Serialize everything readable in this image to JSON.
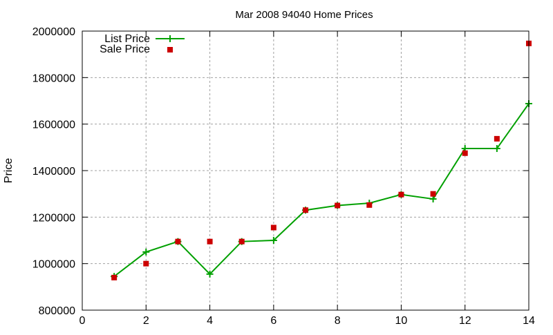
{
  "chart_data": {
    "type": "line",
    "title": "Mar 2008 94040 Home Prices",
    "xlabel": "",
    "ylabel": "Price",
    "xlim": [
      0,
      14
    ],
    "ylim": [
      800000,
      2000000
    ],
    "xticks": [
      0,
      2,
      4,
      6,
      8,
      10,
      12,
      14
    ],
    "yticks": [
      800000,
      1000000,
      1200000,
      1400000,
      1600000,
      1800000,
      2000000
    ],
    "grid": true,
    "legend_position": "top-left",
    "x": [
      1,
      2,
      3,
      4,
      5,
      6,
      7,
      8,
      9,
      10,
      11,
      12,
      13,
      14
    ],
    "series": [
      {
        "name": "List Price",
        "style": "linespoints",
        "marker": "plus",
        "color": "#00a000",
        "values": [
          945000,
          1050000,
          1095000,
          955000,
          1095000,
          1100000,
          1230000,
          1250000,
          1260000,
          1297000,
          1278000,
          1495000,
          1495000,
          1688000
        ]
      },
      {
        "name": "Sale Price",
        "style": "points",
        "marker": "square",
        "color": "#cc0000",
        "values": [
          940000,
          1000000,
          1095000,
          1095000,
          1095000,
          1155000,
          1230000,
          1250000,
          1252000,
          1297000,
          1300000,
          1475000,
          1537000,
          1947000
        ]
      }
    ]
  },
  "labels": {
    "title": "Mar 2008 94040 Home Prices",
    "ylabel": "Price",
    "legend_list": "List Price",
    "legend_sale": "Sale Price"
  }
}
